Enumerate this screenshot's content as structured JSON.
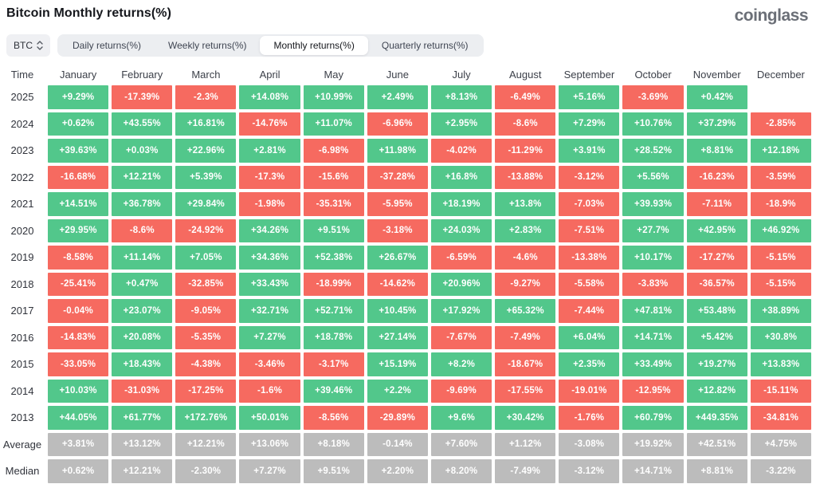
{
  "title": "Bitcoin Monthly returns(%)",
  "logo": "coinglass",
  "controls": {
    "symbol_select": {
      "value": "BTC",
      "icon": "up-down-arrows-icon"
    },
    "tabs": [
      {
        "label": "Daily returns(%)",
        "active": false
      },
      {
        "label": "Weekly returns(%)",
        "active": false
      },
      {
        "label": "Monthly returns(%)",
        "active": true
      },
      {
        "label": "Quarterly returns(%)",
        "active": false
      }
    ]
  },
  "colors": {
    "positive": "#52c78b",
    "negative": "#f66a60",
    "summary_neutral": "#bcbcbc",
    "tab_bar_bg": "#eceef1",
    "active_tab_bg": "#ffffff"
  },
  "chart_data": {
    "type": "heatmap",
    "title": "Bitcoin Monthly returns(%)",
    "time_label": "Time",
    "columns": [
      "January",
      "February",
      "March",
      "April",
      "May",
      "June",
      "July",
      "August",
      "September",
      "October",
      "November",
      "December"
    ],
    "rows": [
      {
        "label": "2025",
        "summary": false,
        "values": [
          "+9.29%",
          "-17.39%",
          "-2.3%",
          "+14.08%",
          "+10.99%",
          "+2.49%",
          "+8.13%",
          "-6.49%",
          "+5.16%",
          "-3.69%",
          "+0.42%",
          null
        ]
      },
      {
        "label": "2024",
        "summary": false,
        "values": [
          "+0.62%",
          "+43.55%",
          "+16.81%",
          "-14.76%",
          "+11.07%",
          "-6.96%",
          "+2.95%",
          "-8.6%",
          "+7.29%",
          "+10.76%",
          "+37.29%",
          "-2.85%"
        ]
      },
      {
        "label": "2023",
        "summary": false,
        "values": [
          "+39.63%",
          "+0.03%",
          "+22.96%",
          "+2.81%",
          "-6.98%",
          "+11.98%",
          "-4.02%",
          "-11.29%",
          "+3.91%",
          "+28.52%",
          "+8.81%",
          "+12.18%"
        ]
      },
      {
        "label": "2022",
        "summary": false,
        "values": [
          "-16.68%",
          "+12.21%",
          "+5.39%",
          "-17.3%",
          "-15.6%",
          "-37.28%",
          "+16.8%",
          "-13.88%",
          "-3.12%",
          "+5.56%",
          "-16.23%",
          "-3.59%"
        ]
      },
      {
        "label": "2021",
        "summary": false,
        "values": [
          "+14.51%",
          "+36.78%",
          "+29.84%",
          "-1.98%",
          "-35.31%",
          "-5.95%",
          "+18.19%",
          "+13.8%",
          "-7.03%",
          "+39.93%",
          "-7.11%",
          "-18.9%"
        ]
      },
      {
        "label": "2020",
        "summary": false,
        "values": [
          "+29.95%",
          "-8.6%",
          "-24.92%",
          "+34.26%",
          "+9.51%",
          "-3.18%",
          "+24.03%",
          "+2.83%",
          "-7.51%",
          "+27.7%",
          "+42.95%",
          "+46.92%"
        ]
      },
      {
        "label": "2019",
        "summary": false,
        "values": [
          "-8.58%",
          "+11.14%",
          "+7.05%",
          "+34.36%",
          "+52.38%",
          "+26.67%",
          "-6.59%",
          "-4.6%",
          "-13.38%",
          "+10.17%",
          "-17.27%",
          "-5.15%"
        ]
      },
      {
        "label": "2018",
        "summary": false,
        "values": [
          "-25.41%",
          "+0.47%",
          "-32.85%",
          "+33.43%",
          "-18.99%",
          "-14.62%",
          "+20.96%",
          "-9.27%",
          "-5.58%",
          "-3.83%",
          "-36.57%",
          "-5.15%"
        ]
      },
      {
        "label": "2017",
        "summary": false,
        "values": [
          "-0.04%",
          "+23.07%",
          "-9.05%",
          "+32.71%",
          "+52.71%",
          "+10.45%",
          "+17.92%",
          "+65.32%",
          "-7.44%",
          "+47.81%",
          "+53.48%",
          "+38.89%"
        ]
      },
      {
        "label": "2016",
        "summary": false,
        "values": [
          "-14.83%",
          "+20.08%",
          "-5.35%",
          "+7.27%",
          "+18.78%",
          "+27.14%",
          "-7.67%",
          "-7.49%",
          "+6.04%",
          "+14.71%",
          "+5.42%",
          "+30.8%"
        ]
      },
      {
        "label": "2015",
        "summary": false,
        "values": [
          "-33.05%",
          "+18.43%",
          "-4.38%",
          "-3.46%",
          "-3.17%",
          "+15.19%",
          "+8.2%",
          "-18.67%",
          "+2.35%",
          "+33.49%",
          "+19.27%",
          "+13.83%"
        ]
      },
      {
        "label": "2014",
        "summary": false,
        "values": [
          "+10.03%",
          "-31.03%",
          "-17.25%",
          "-1.6%",
          "+39.46%",
          "+2.2%",
          "-9.69%",
          "-17.55%",
          "-19.01%",
          "-12.95%",
          "+12.82%",
          "-15.11%"
        ]
      },
      {
        "label": "2013",
        "summary": false,
        "values": [
          "+44.05%",
          "+61.77%",
          "+172.76%",
          "+50.01%",
          "-8.56%",
          "-29.89%",
          "+9.6%",
          "+30.42%",
          "-1.76%",
          "+60.79%",
          "+449.35%",
          "-34.81%"
        ]
      },
      {
        "label": "Average",
        "summary": true,
        "values": [
          "+3.81%",
          "+13.12%",
          "+12.21%",
          "+13.06%",
          "+8.18%",
          "-0.14%",
          "+7.60%",
          "+1.12%",
          "-3.08%",
          "+19.92%",
          "+42.51%",
          "+4.75%"
        ]
      },
      {
        "label": "Median",
        "summary": true,
        "values": [
          "+0.62%",
          "+12.21%",
          "-2.30%",
          "+7.27%",
          "+9.51%",
          "+2.20%",
          "+8.20%",
          "-7.49%",
          "-3.12%",
          "+14.71%",
          "+8.81%",
          "-3.22%"
        ]
      }
    ]
  }
}
